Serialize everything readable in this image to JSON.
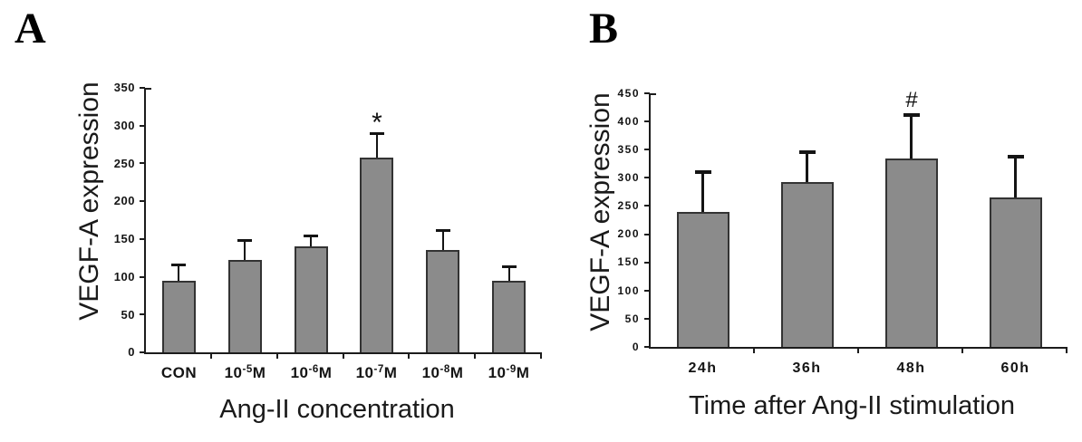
{
  "figure": {
    "background": "#ffffff",
    "bar_fill": "#8b8b8b",
    "bar_border": "#333333",
    "axis_color": "#1c1c1c",
    "text_color": "#141414"
  },
  "chart_data": [
    {
      "type": "bar",
      "panel_letter": "A",
      "ylabel": "VEGF-A expression",
      "xlabel": "Ang-II concentration",
      "ylim": [
        0,
        350
      ],
      "yticks": [
        0,
        50,
        100,
        150,
        200,
        250,
        300,
        350
      ],
      "grid": false,
      "legend": null,
      "categories": [
        "CON",
        "10⁻⁵M",
        "10⁻⁶M",
        "10⁻⁷M",
        "10⁻⁸M",
        "10⁻⁹M"
      ],
      "category_segments": [
        [
          {
            "t": "CON"
          }
        ],
        [
          {
            "t": "10"
          },
          {
            "t": "-5",
            "sup": true
          },
          {
            "t": "M"
          }
        ],
        [
          {
            "t": "10"
          },
          {
            "t": "-6",
            "sup": true
          },
          {
            "t": "M"
          }
        ],
        [
          {
            "t": "10"
          },
          {
            "t": "-7",
            "sup": true
          },
          {
            "t": "M"
          }
        ],
        [
          {
            "t": "10"
          },
          {
            "t": "-8",
            "sup": true
          },
          {
            "t": "M"
          }
        ],
        [
          {
            "t": "10"
          },
          {
            "t": "-9",
            "sup": true
          },
          {
            "t": "M"
          }
        ]
      ],
      "values": [
        95,
        122,
        140,
        258,
        136,
        95
      ],
      "error_up": [
        21,
        27,
        15,
        32,
        26,
        19
      ],
      "sig_markers": [
        "",
        "",
        "",
        "*",
        "",
        ""
      ]
    },
    {
      "type": "bar",
      "panel_letter": "B",
      "ylabel": "VEGF-A expression",
      "xlabel": "Time after Ang-II stimulation",
      "ylim": [
        0,
        450
      ],
      "yticks": [
        0,
        50,
        100,
        150,
        200,
        250,
        300,
        350,
        400,
        450
      ],
      "grid": false,
      "legend": null,
      "categories": [
        "24h",
        "36h",
        "48h",
        "60h"
      ],
      "category_segments": [
        [
          {
            "t": "24h"
          }
        ],
        [
          {
            "t": "36h"
          }
        ],
        [
          {
            "t": "48h"
          }
        ],
        [
          {
            "t": "60h"
          }
        ]
      ],
      "values": [
        240,
        292,
        335,
        265
      ],
      "error_up": [
        70,
        53,
        77,
        73
      ],
      "sig_markers": [
        "",
        "",
        "#",
        ""
      ]
    }
  ]
}
